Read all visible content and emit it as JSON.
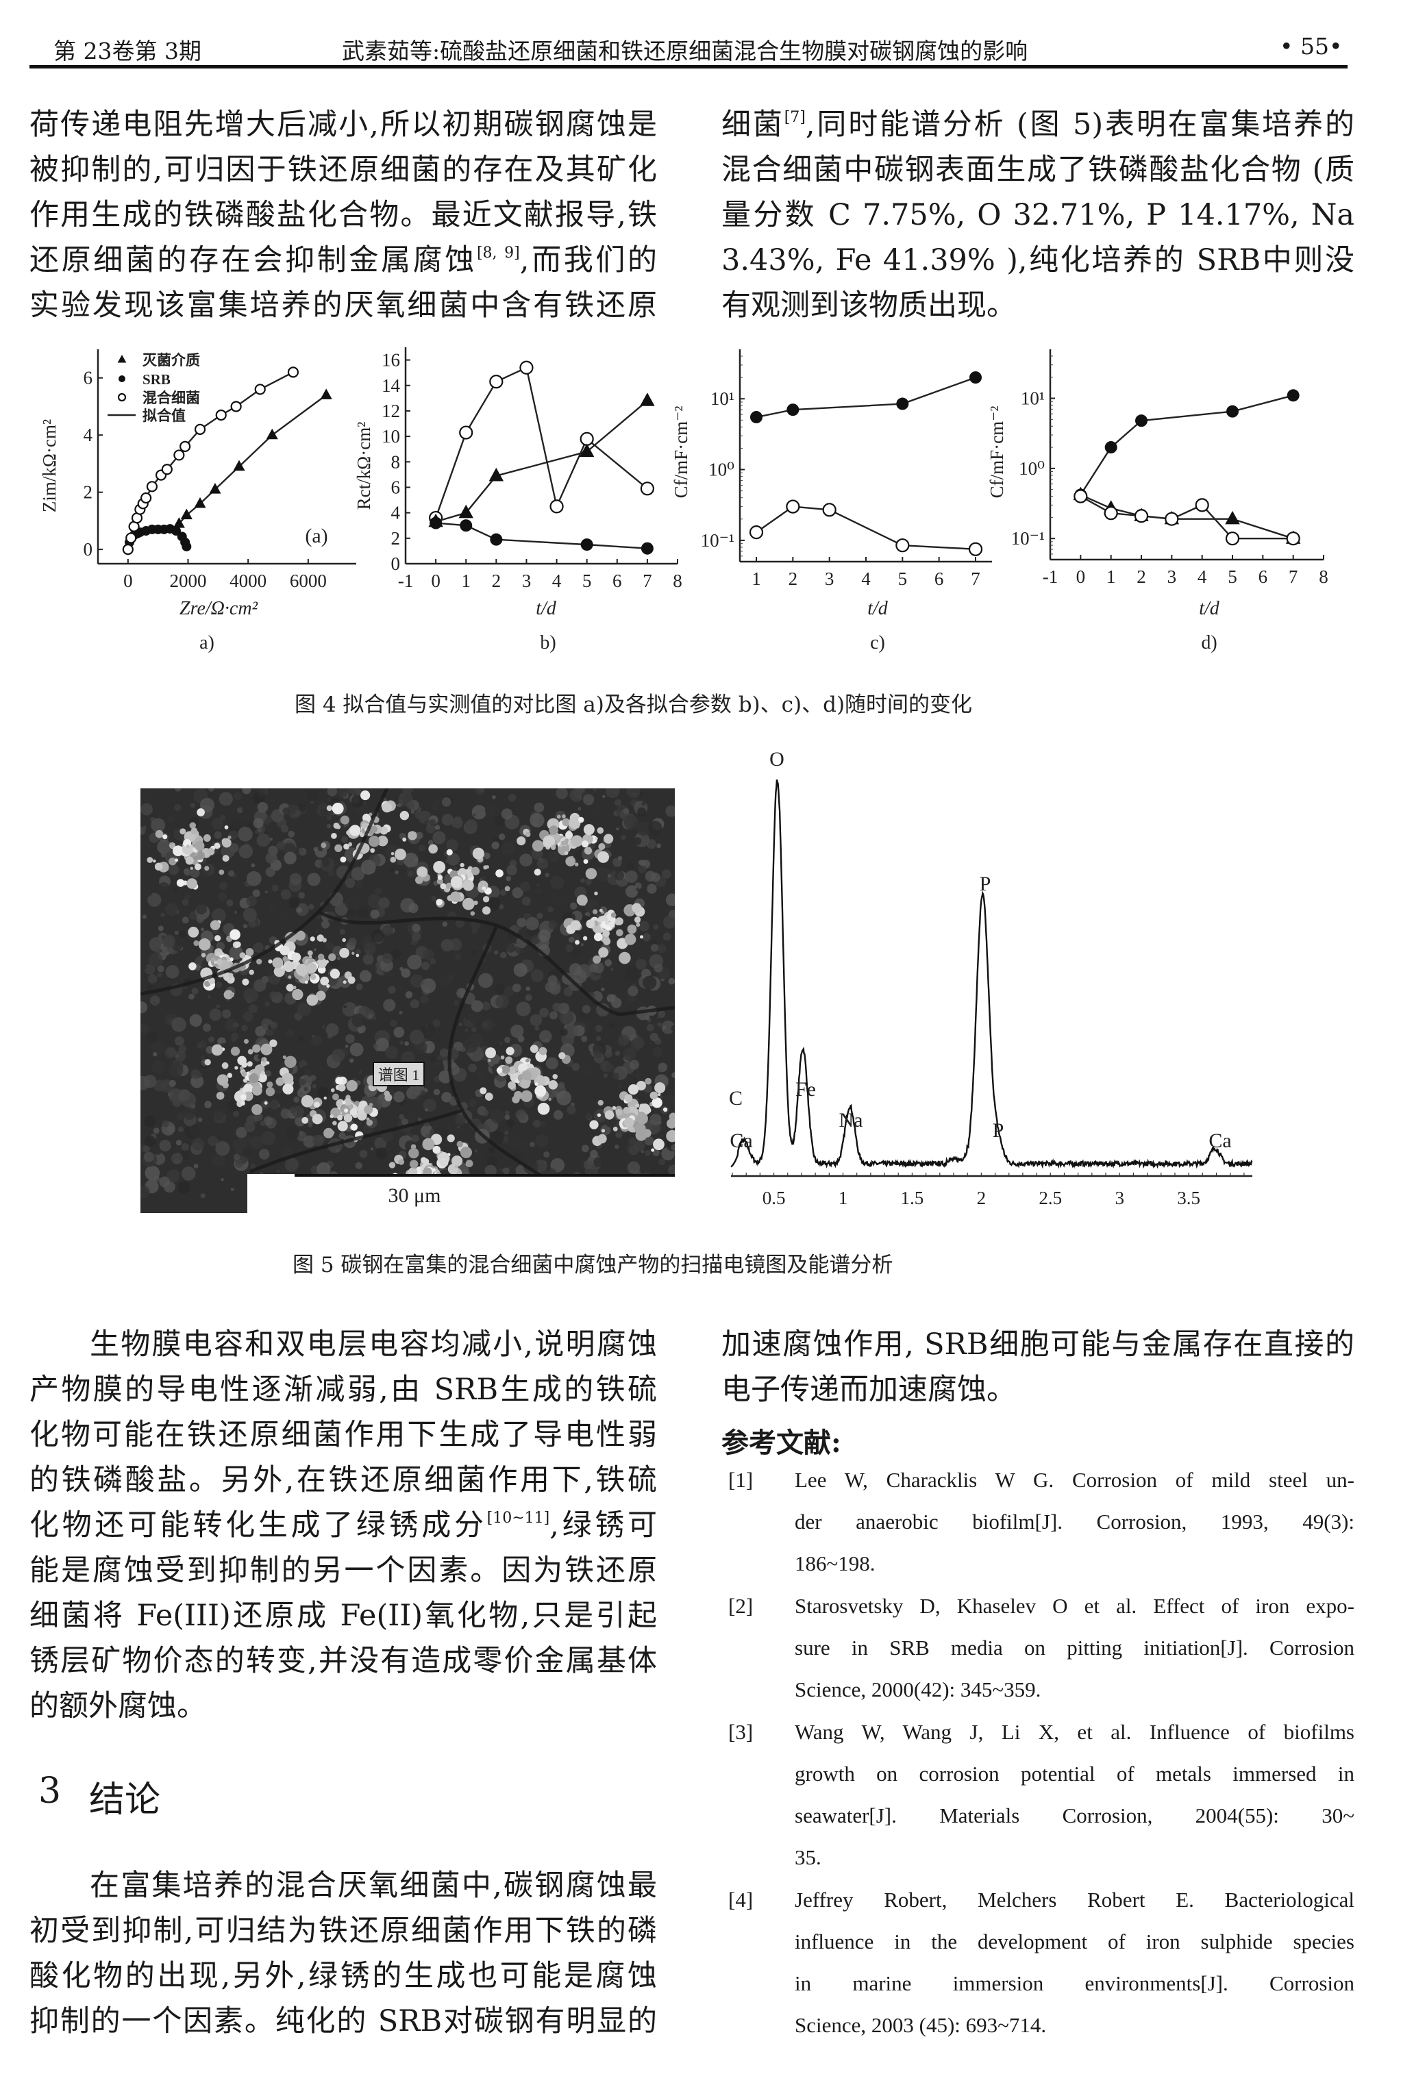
{
  "header": {
    "issue": "第 23卷第 3期",
    "title": "武素茹等:硫酸盐还原细菌和铁还原细菌混合生物膜对碳钢腐蚀的影响",
    "page": "• 55•"
  },
  "top_left": [
    [
      {
        "t": "荷传递电阻先增大后减小,所以初期碳钢腐蚀是"
      }
    ],
    [
      {
        "t": "被抑制的,可归因于铁还原细菌的存在及其矿化"
      }
    ],
    [
      {
        "t": "作用生成的铁磷酸盐化合物。最近文献报导,铁"
      }
    ],
    [
      {
        "t": "还原细菌的存在会抑制金属腐蚀"
      },
      {
        "s": "[8, 9]"
      },
      {
        "t": ",而我们的"
      }
    ],
    [
      {
        "t": "实验发现该富集培养的厌氧细菌中含有铁还原"
      }
    ]
  ],
  "top_right": [
    [
      {
        "t": "细菌"
      },
      {
        "s": "[7]"
      },
      {
        "t": ",同时能谱分析 (图 5)表明在富集培养的"
      }
    ],
    [
      {
        "t": "混合细菌中碳钢表面生成了铁磷酸盐化合物 (质"
      }
    ],
    [
      {
        "t": "量分数 C 7.75%, O 32.71%, P 14.17%, Na"
      }
    ],
    [
      {
        "t": "3.43%, Fe 41.39% ),纯化培养的 SRB中则没"
      }
    ],
    [
      {
        "t": "有观测到该物质出现。"
      }
    ]
  ],
  "figure4": {
    "caption": "图 4    拟合值与实测值的对比图 a)及各拟合参数 b)、c)、d)随时间的变化"
  },
  "figure5": {
    "caption": "图 5    碳钢在富集的混合细菌中腐蚀产物的扫描电镜图及能谱分析",
    "sem_label": "谱图 1",
    "scale_bar": "30 μm"
  },
  "chart_data": [
    {
      "type": "scatter",
      "panel": "a)",
      "annotation": "(a)",
      "xlabel": "Zre/Ω·cm²",
      "ylabel": "Zim/kΩ·cm²",
      "xlim": [
        -1000,
        7600
      ],
      "ylim": [
        -0.5,
        7
      ],
      "xticks": [
        0,
        2000,
        4000,
        6000
      ],
      "yticks": [
        0,
        2,
        4,
        6
      ],
      "legend": [
        "灭菌介质",
        "SRB",
        "混合细菌",
        "拟合值"
      ],
      "legend_position": "top-left",
      "series": [
        {
          "name": "灭菌介质",
          "marker": "triangle",
          "points": [
            [
              1700,
              0.9
            ],
            [
              1950,
              1.2
            ],
            [
              2400,
              1.6
            ],
            [
              2900,
              2.1
            ],
            [
              3700,
              2.9
            ],
            [
              4800,
              4.0
            ],
            [
              6600,
              5.4
            ]
          ]
        },
        {
          "name": "SRB",
          "marker": "filled-circle",
          "points": [
            [
              0,
              0
            ],
            [
              50,
              0.25
            ],
            [
              100,
              0.4
            ],
            [
              200,
              0.5
            ],
            [
              300,
              0.55
            ],
            [
              400,
              0.6
            ],
            [
              600,
              0.65
            ],
            [
              800,
              0.7
            ],
            [
              1000,
              0.7
            ],
            [
              1200,
              0.7
            ],
            [
              1400,
              0.72
            ],
            [
              1600,
              0.65
            ],
            [
              1800,
              0.45
            ],
            [
              1900,
              0.25
            ],
            [
              1950,
              0.1
            ]
          ]
        },
        {
          "name": "混合细菌",
          "marker": "open-circle",
          "points": [
            [
              0,
              0
            ],
            [
              100,
              0.4
            ],
            [
              200,
              0.8
            ],
            [
              300,
              1.1
            ],
            [
              400,
              1.4
            ],
            [
              500,
              1.6
            ],
            [
              600,
              1.8
            ],
            [
              800,
              2.2
            ],
            [
              1100,
              2.6
            ],
            [
              1300,
              2.8
            ],
            [
              1700,
              3.3
            ],
            [
              1900,
              3.6
            ],
            [
              2400,
              4.2
            ],
            [
              3100,
              4.7
            ],
            [
              3600,
              5.0
            ],
            [
              4400,
              5.6
            ],
            [
              5500,
              6.2
            ]
          ]
        }
      ]
    },
    {
      "type": "line",
      "panel": "b)",
      "xlabel": "t/d",
      "ylabel": "Rct/kΩ·cm²",
      "xlim": [
        -1,
        8
      ],
      "ylim": [
        0,
        17
      ],
      "xticks": [
        -1,
        0,
        1,
        2,
        3,
        4,
        5,
        6,
        7,
        8
      ],
      "yticks": [
        0,
        2,
        4,
        6,
        8,
        10,
        12,
        14,
        16
      ],
      "series": [
        {
          "marker": "open-circle",
          "points": [
            [
              0,
              3.6
            ],
            [
              1,
              10.3
            ],
            [
              2,
              14.3
            ],
            [
              3,
              15.4
            ],
            [
              4,
              4.5
            ],
            [
              5,
              9.8
            ],
            [
              7,
              5.9
            ]
          ]
        },
        {
          "marker": "triangle",
          "points": [
            [
              0,
              3.3
            ],
            [
              1,
              4.0
            ],
            [
              2,
              6.9
            ],
            [
              5,
              8.8
            ],
            [
              7,
              12.8
            ]
          ]
        },
        {
          "marker": "filled-circle",
          "points": [
            [
              0,
              3.2
            ],
            [
              1,
              3.0
            ],
            [
              2,
              1.9
            ],
            [
              5,
              1.5
            ],
            [
              7,
              1.2
            ]
          ]
        }
      ]
    },
    {
      "type": "line",
      "panel": "c)",
      "yscale": "log",
      "xlabel": "t/d",
      "ylabel": "Cf/mF·cm⁻²",
      "xlim": [
        0.55,
        7.45
      ],
      "ylim": [
        0.05,
        50
      ],
      "xticks": [
        1,
        2,
        3,
        4,
        5,
        6,
        7
      ],
      "yticks": [
        0.1,
        1,
        10
      ],
      "ytick_labels": [
        "10⁻¹",
        "10⁰",
        "10¹"
      ],
      "series": [
        {
          "marker": "filled-circle",
          "points": [
            [
              1,
              5.5
            ],
            [
              2,
              7
            ],
            [
              5,
              8.5
            ],
            [
              7,
              20
            ]
          ]
        },
        {
          "marker": "open-circle",
          "points": [
            [
              1,
              0.13
            ],
            [
              2,
              0.3
            ],
            [
              3,
              0.27
            ],
            [
              5,
              0.085
            ],
            [
              7,
              0.075
            ]
          ]
        }
      ]
    },
    {
      "type": "line",
      "panel": "d)",
      "yscale": "log",
      "xlabel": "t/d",
      "ylabel": "Cf/mF·cm⁻²",
      "xlim": [
        -1,
        8
      ],
      "ylim": [
        0.05,
        50
      ],
      "xticks": [
        -1,
        0,
        1,
        2,
        3,
        4,
        5,
        6,
        7,
        8
      ],
      "yticks": [
        0.1,
        1,
        10
      ],
      "ytick_labels": [
        "10⁻¹",
        "10⁰",
        "10¹"
      ],
      "series": [
        {
          "marker": "filled-circle",
          "points": [
            [
              0,
              0.42
            ],
            [
              1,
              2
            ],
            [
              2,
              4.8
            ],
            [
              5,
              6.5
            ],
            [
              7,
              11
            ]
          ]
        },
        {
          "marker": "triangle",
          "points": [
            [
              0,
              0.42
            ],
            [
              1,
              0.27
            ],
            [
              2,
              0.21
            ],
            [
              3,
              0.19
            ],
            [
              5,
              0.19
            ],
            [
              7,
              0.1
            ]
          ]
        },
        {
          "marker": "open-circle",
          "points": [
            [
              0,
              0.4
            ],
            [
              1,
              0.23
            ],
            [
              2,
              0.21
            ],
            [
              3,
              0.19
            ],
            [
              4,
              0.3
            ],
            [
              5,
              0.1
            ],
            [
              7,
              0.1
            ]
          ]
        }
      ]
    },
    {
      "type": "line",
      "panel": "EDS",
      "xlim": [
        0.19,
        3.96
      ],
      "xticks": [
        0.5,
        1,
        1.5,
        2,
        2.5,
        3,
        3.5
      ],
      "peaks": [
        {
          "energy": 0.28,
          "height": 0.06
        },
        {
          "energy": 0.525,
          "height": 1.0
        },
        {
          "energy": 0.71,
          "height": 0.3
        },
        {
          "energy": 1.05,
          "height": 0.15
        },
        {
          "energy": 2.01,
          "height": 0.7
        },
        {
          "energy": 2.12,
          "height": 0.06
        },
        {
          "energy": 3.69,
          "height": 0.04
        }
      ],
      "peak_labels": [
        "O",
        "P",
        "Fe",
        "C",
        "Ca",
        "Na",
        "P",
        "Ca"
      ]
    }
  ],
  "bottom_left": [
    [
      {
        "t": "生物膜电容和双电层电容均减小,说明腐蚀"
      }
    ],
    [
      {
        "t": "产物膜的导电性逐渐减弱,由 SRB生成的铁硫"
      }
    ],
    [
      {
        "t": "化物可能在铁还原细菌作用下生成了导电性弱"
      }
    ],
    [
      {
        "t": "的铁磷酸盐。另外,在铁还原细菌作用下,铁硫"
      }
    ],
    [
      {
        "t": "化物还可能转化生成了绿锈成分"
      },
      {
        "s": "[10~11]"
      },
      {
        "t": ",绿锈可"
      }
    ],
    [
      {
        "t": "能是腐蚀受到抑制的另一个因素。因为铁还原"
      }
    ],
    [
      {
        "t": "细菌将 Fe(III)还原成 Fe(II)氧化物,只是引起"
      }
    ],
    [
      {
        "t": "锈层矿物价态的转变,并没有造成零价金属基体"
      }
    ],
    [
      {
        "t": "的额外腐蚀。"
      }
    ]
  ],
  "section": {
    "number": "3",
    "title": "结论"
  },
  "conclusion": [
    [
      {
        "t": "在富集培养的混合厌氧细菌中,碳钢腐蚀最"
      }
    ],
    [
      {
        "t": "初受到抑制,可归结为铁还原细菌作用下铁的磷"
      }
    ],
    [
      {
        "t": "酸化物的出现,另外,绿锈的生成也可能是腐蚀"
      }
    ],
    [
      {
        "t": "抑制的一个因素。纯化的 SRB对碳钢有明显的"
      }
    ]
  ],
  "bottom_right": [
    [
      {
        "t": "加速腐蚀作用, SRB细胞可能与金属存在直接的"
      }
    ],
    [
      {
        "t": "电子传递而加速腐蚀。"
      }
    ]
  ],
  "references_title": "参考文献:",
  "references": [
    {
      "num": "[1]",
      "lines": [
        "Lee W, Characklis W G. Corrosion of mild steel un-",
        "der anaerobic biofilm[J]. Corrosion, 1993, 49(3):",
        "186~198."
      ]
    },
    {
      "num": "[2]",
      "lines": [
        "Starosvetsky D, Khaselev O et al. Effect of iron expo-",
        "sure in SRB media on pitting initiation[J]. Corrosion",
        "Science, 2000(42): 345~359."
      ]
    },
    {
      "num": "[3]",
      "lines": [
        "Wang W, Wang J, Li X, et al. Influence of biofilms",
        "growth on corrosion potential of metals immersed in",
        "seawater[J]. Materials Corrosion, 2004(55): 30~",
        "35."
      ]
    },
    {
      "num": "[4]",
      "lines": [
        "Jeffrey Robert, Melchers Robert E. Bacteriological",
        "influence in the development of iron sulphide species",
        "in marine immersion environments[J]. Corrosion",
        "Science, 2003 (45): 693~714."
      ]
    }
  ]
}
